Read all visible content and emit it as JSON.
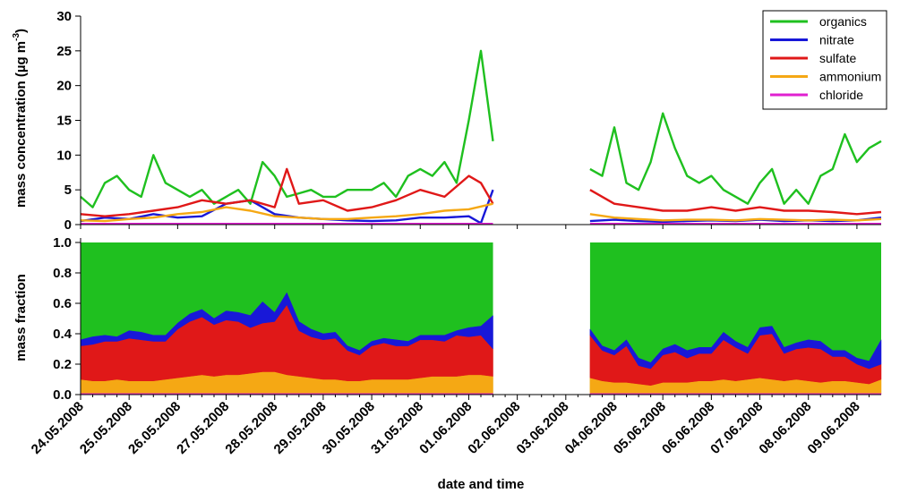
{
  "chart_data": [
    {
      "type": "line",
      "ylabel": "mass concentration (µg m",
      "ylabel_superscript": "-3",
      "ylabel_suffix": ")",
      "ylim": [
        0,
        30
      ],
      "yticks": [
        0,
        5,
        10,
        15,
        20,
        25,
        30
      ],
      "x_range": [
        "24.05.2008 00:00",
        "09.06.2008 12:00"
      ],
      "legend_position": "top-right",
      "series": [
        {
          "name": "organics",
          "color": "#1fc01f",
          "x": [
            "24.05.2008 00:00",
            "24.05.2008 06:00",
            "24.05.2008 12:00",
            "24.05.2008 18:00",
            "25.05.2008 00:00",
            "25.05.2008 06:00",
            "25.05.2008 12:00",
            "25.05.2008 18:00",
            "26.05.2008 00:00",
            "26.05.2008 06:00",
            "26.05.2008 12:00",
            "26.05.2008 18:00",
            "27.05.2008 00:00",
            "27.05.2008 06:00",
            "27.05.2008 12:00",
            "27.05.2008 18:00",
            "28.05.2008 00:00",
            "28.05.2008 06:00",
            "28.05.2008 12:00",
            "28.05.2008 18:00",
            "29.05.2008 00:00",
            "29.05.2008 06:00",
            "29.05.2008 12:00",
            "29.05.2008 18:00",
            "30.05.2008 00:00",
            "30.05.2008 06:00",
            "30.05.2008 12:00",
            "30.05.2008 18:00",
            "31.05.2008 00:00",
            "31.05.2008 06:00",
            "31.05.2008 12:00",
            "31.05.2008 18:00",
            "01.06.2008 00:00",
            "01.06.2008 06:00",
            "01.06.2008 12:00",
            null,
            "03.06.2008 12:00",
            "03.06.2008 18:00",
            "04.06.2008 00:00",
            "04.06.2008 06:00",
            "04.06.2008 12:00",
            "04.06.2008 18:00",
            "05.06.2008 00:00",
            "05.06.2008 06:00",
            "05.06.2008 12:00",
            "05.06.2008 18:00",
            "06.06.2008 00:00",
            "06.06.2008 06:00",
            "06.06.2008 12:00",
            "06.06.2008 18:00",
            "07.06.2008 00:00",
            "07.06.2008 06:00",
            "07.06.2008 12:00",
            "07.06.2008 18:00",
            "08.06.2008 00:00",
            "08.06.2008 06:00",
            "08.06.2008 12:00",
            "08.06.2008 18:00",
            "09.06.2008 00:00",
            "09.06.2008 06:00",
            "09.06.2008 12:00"
          ],
          "y": [
            4,
            2.5,
            6,
            7,
            5,
            4,
            10,
            6,
            5,
            4,
            5,
            3,
            4,
            5,
            3,
            9,
            7,
            4,
            4.5,
            5,
            4,
            4,
            5,
            5,
            5,
            6,
            4,
            7,
            8,
            7,
            9,
            6,
            15,
            25,
            12,
            null,
            8,
            7,
            14,
            6,
            5,
            9,
            16,
            11,
            7,
            6,
            7,
            5,
            4,
            3,
            6,
            8,
            3,
            5,
            3,
            7,
            8,
            13,
            9,
            11,
            12
          ]
        },
        {
          "name": "nitrate",
          "color": "#1818d8",
          "x": [
            "24.05.2008 00:00",
            "24.05.2008 12:00",
            "25.05.2008 00:00",
            "25.05.2008 12:00",
            "26.05.2008 00:00",
            "26.05.2008 12:00",
            "27.05.2008 00:00",
            "27.05.2008 12:00",
            "28.05.2008 00:00",
            "28.05.2008 12:00",
            "29.05.2008 00:00",
            "29.05.2008 12:00",
            "30.05.2008 00:00",
            "30.05.2008 12:00",
            "31.05.2008 00:00",
            "31.05.2008 12:00",
            "01.06.2008 00:00",
            "01.06.2008 06:00",
            "01.06.2008 12:00",
            null,
            "03.06.2008 12:00",
            "04.06.2008 00:00",
            "04.06.2008 12:00",
            "05.06.2008 00:00",
            "05.06.2008 12:00",
            "06.06.2008 00:00",
            "06.06.2008 12:00",
            "07.06.2008 00:00",
            "07.06.2008 12:00",
            "08.06.2008 00:00",
            "08.06.2008 12:00",
            "09.06.2008 00:00",
            "09.06.2008 12:00"
          ],
          "y": [
            0.5,
            1,
            0.8,
            1.5,
            1,
            1.2,
            3,
            3.5,
            1.5,
            1,
            0.8,
            0.6,
            0.5,
            0.6,
            1,
            1,
            1.2,
            0.2,
            5,
            null,
            0.5,
            0.7,
            0.5,
            0.4,
            0.5,
            0.6,
            0.5,
            0.7,
            0.5,
            0.6,
            0.5,
            0.6,
            1
          ]
        },
        {
          "name": "sulfate",
          "color": "#e01818",
          "x": [
            "24.05.2008 00:00",
            "24.05.2008 12:00",
            "25.05.2008 00:00",
            "25.05.2008 12:00",
            "26.05.2008 00:00",
            "26.05.2008 12:00",
            "27.05.2008 00:00",
            "27.05.2008 12:00",
            "28.05.2008 00:00",
            "28.05.2008 06:00",
            "28.05.2008 12:00",
            "29.05.2008 00:00",
            "29.05.2008 12:00",
            "30.05.2008 00:00",
            "30.05.2008 12:00",
            "31.05.2008 00:00",
            "31.05.2008 12:00",
            "01.06.2008 00:00",
            "01.06.2008 06:00",
            "01.06.2008 12:00",
            null,
            "03.06.2008 12:00",
            "04.06.2008 00:00",
            "04.06.2008 12:00",
            "05.06.2008 00:00",
            "05.06.2008 12:00",
            "06.06.2008 00:00",
            "06.06.2008 12:00",
            "07.06.2008 00:00",
            "07.06.2008 12:00",
            "08.06.2008 00:00",
            "08.06.2008 12:00",
            "09.06.2008 00:00",
            "09.06.2008 12:00"
          ],
          "y": [
            1.5,
            1.2,
            1.5,
            2,
            2.5,
            3.5,
            3,
            3.5,
            2.5,
            8,
            3,
            3.5,
            2,
            2.5,
            3.5,
            5,
            4,
            7,
            6,
            3,
            null,
            5,
            3,
            2.5,
            2,
            2,
            2.5,
            2,
            2.5,
            2,
            2,
            1.8,
            1.5,
            1.8
          ]
        },
        {
          "name": "ammonium",
          "color": "#f5a814",
          "x": [
            "24.05.2008 00:00",
            "24.05.2008 12:00",
            "25.05.2008 00:00",
            "25.05.2008 12:00",
            "26.05.2008 00:00",
            "26.05.2008 12:00",
            "27.05.2008 00:00",
            "27.05.2008 12:00",
            "28.05.2008 00:00",
            "28.05.2008 12:00",
            "29.05.2008 00:00",
            "29.05.2008 12:00",
            "30.05.2008 00:00",
            "30.05.2008 12:00",
            "31.05.2008 00:00",
            "31.05.2008 12:00",
            "01.06.2008 00:00",
            "01.06.2008 12:00",
            null,
            "03.06.2008 12:00",
            "04.06.2008 00:00",
            "04.06.2008 12:00",
            "05.06.2008 00:00",
            "05.06.2008 12:00",
            "06.06.2008 00:00",
            "06.06.2008 12:00",
            "07.06.2008 00:00",
            "07.06.2008 12:00",
            "08.06.2008 00:00",
            "08.06.2008 12:00",
            "09.06.2008 00:00",
            "09.06.2008 12:00"
          ],
          "y": [
            0.6,
            0.5,
            0.8,
            1,
            1.5,
            1.8,
            2.5,
            2,
            1.2,
            1,
            0.8,
            0.8,
            1,
            1.2,
            1.5,
            2,
            2.2,
            3,
            null,
            1.5,
            1,
            0.8,
            0.6,
            0.7,
            0.7,
            0.6,
            0.8,
            0.7,
            0.6,
            0.7,
            0.6,
            0.8
          ]
        },
        {
          "name": "chloride",
          "color": "#e020d0",
          "x": [
            "24.05.2008 00:00",
            "01.06.2008 12:00",
            null,
            "03.06.2008 12:00",
            "09.06.2008 12:00"
          ],
          "y": [
            0.1,
            0.1,
            null,
            0.1,
            0.1
          ]
        }
      ]
    },
    {
      "type": "area",
      "ylabel": "mass fraction",
      "ylim": [
        0,
        1
      ],
      "yticks": [
        "0.0",
        "0.2",
        "0.4",
        "0.6",
        "0.8",
        "1.0"
      ],
      "xlabel": "date and time",
      "stacked": true,
      "stack_order": [
        "chloride",
        "ammonium",
        "sulfate",
        "nitrate",
        "organics"
      ],
      "segments": [
        {
          "x": [
            "24.05.2008 00:00",
            "24.05.2008 06:00",
            "24.05.2008 12:00",
            "24.05.2008 18:00",
            "25.05.2008 00:00",
            "25.05.2008 06:00",
            "25.05.2008 12:00",
            "25.05.2008 18:00",
            "26.05.2008 00:00",
            "26.05.2008 06:00",
            "26.05.2008 12:00",
            "26.05.2008 18:00",
            "27.05.2008 00:00",
            "27.05.2008 06:00",
            "27.05.2008 12:00",
            "27.05.2008 18:00",
            "28.05.2008 00:00",
            "28.05.2008 06:00",
            "28.05.2008 12:00",
            "28.05.2008 18:00",
            "29.05.2008 00:00",
            "29.05.2008 06:00",
            "29.05.2008 12:00",
            "29.05.2008 18:00",
            "30.05.2008 00:00",
            "30.05.2008 06:00",
            "30.05.2008 12:00",
            "30.05.2008 18:00",
            "31.05.2008 00:00",
            "31.05.2008 06:00",
            "31.05.2008 12:00",
            "31.05.2008 18:00",
            "01.06.2008 00:00",
            "01.06.2008 06:00",
            "01.06.2008 12:00"
          ],
          "chloride": [
            0.01,
            0.01,
            0.01,
            0.01,
            0.01,
            0.01,
            0.01,
            0.01,
            0.01,
            0.01,
            0.01,
            0.01,
            0.01,
            0.01,
            0.01,
            0.01,
            0.01,
            0.01,
            0.01,
            0.01,
            0.01,
            0.01,
            0.01,
            0.01,
            0.01,
            0.01,
            0.01,
            0.01,
            0.01,
            0.01,
            0.01,
            0.01,
            0.01,
            0.01,
            0.01
          ],
          "ammonium": [
            0.09,
            0.08,
            0.08,
            0.09,
            0.08,
            0.08,
            0.08,
            0.09,
            0.1,
            0.11,
            0.12,
            0.11,
            0.12,
            0.12,
            0.13,
            0.14,
            0.14,
            0.12,
            0.11,
            0.1,
            0.09,
            0.09,
            0.08,
            0.08,
            0.09,
            0.09,
            0.09,
            0.09,
            0.1,
            0.11,
            0.11,
            0.11,
            0.12,
            0.12,
            0.11
          ],
          "sulfate": [
            0.22,
            0.24,
            0.26,
            0.25,
            0.28,
            0.27,
            0.26,
            0.25,
            0.32,
            0.36,
            0.38,
            0.34,
            0.36,
            0.35,
            0.3,
            0.32,
            0.33,
            0.46,
            0.3,
            0.27,
            0.26,
            0.27,
            0.2,
            0.17,
            0.22,
            0.24,
            0.22,
            0.22,
            0.25,
            0.24,
            0.23,
            0.27,
            0.25,
            0.26,
            0.18
          ],
          "nitrate": [
            0.04,
            0.05,
            0.04,
            0.03,
            0.05,
            0.05,
            0.04,
            0.04,
            0.04,
            0.05,
            0.05,
            0.04,
            0.06,
            0.06,
            0.08,
            0.14,
            0.06,
            0.08,
            0.06,
            0.05,
            0.04,
            0.04,
            0.03,
            0.03,
            0.03,
            0.03,
            0.04,
            0.03,
            0.03,
            0.03,
            0.04,
            0.03,
            0.06,
            0.06,
            0.22
          ]
        },
        {
          "x": [
            "03.06.2008 12:00",
            "03.06.2008 18:00",
            "04.06.2008 00:00",
            "04.06.2008 06:00",
            "04.06.2008 12:00",
            "04.06.2008 18:00",
            "05.06.2008 00:00",
            "05.06.2008 06:00",
            "05.06.2008 12:00",
            "05.06.2008 18:00",
            "06.06.2008 00:00",
            "06.06.2008 06:00",
            "06.06.2008 12:00",
            "06.06.2008 18:00",
            "07.06.2008 00:00",
            "07.06.2008 06:00",
            "07.06.2008 12:00",
            "07.06.2008 18:00",
            "08.06.2008 00:00",
            "08.06.2008 06:00",
            "08.06.2008 12:00",
            "08.06.2008 18:00",
            "09.06.2008 00:00",
            "09.06.2008 06:00",
            "09.06.2008 12:00"
          ],
          "chloride": [
            0.01,
            0.01,
            0.01,
            0.01,
            0.01,
            0.01,
            0.01,
            0.01,
            0.01,
            0.01,
            0.01,
            0.01,
            0.01,
            0.01,
            0.01,
            0.01,
            0.01,
            0.01,
            0.01,
            0.01,
            0.01,
            0.01,
            0.01,
            0.01,
            0.01
          ],
          "ammonium": [
            0.1,
            0.08,
            0.07,
            0.07,
            0.06,
            0.05,
            0.07,
            0.07,
            0.07,
            0.08,
            0.08,
            0.09,
            0.08,
            0.09,
            0.1,
            0.09,
            0.08,
            0.09,
            0.08,
            0.07,
            0.08,
            0.08,
            0.07,
            0.06,
            0.09
          ],
          "sulfate": [
            0.28,
            0.2,
            0.18,
            0.24,
            0.12,
            0.11,
            0.18,
            0.2,
            0.16,
            0.18,
            0.18,
            0.26,
            0.22,
            0.17,
            0.28,
            0.3,
            0.18,
            0.2,
            0.22,
            0.22,
            0.16,
            0.16,
            0.12,
            0.1,
            0.1
          ],
          "nitrate": [
            0.04,
            0.03,
            0.03,
            0.04,
            0.05,
            0.04,
            0.04,
            0.05,
            0.05,
            0.04,
            0.04,
            0.05,
            0.04,
            0.04,
            0.05,
            0.05,
            0.04,
            0.04,
            0.05,
            0.05,
            0.04,
            0.04,
            0.04,
            0.05,
            0.16
          ]
        }
      ]
    }
  ],
  "x_tick_labels": [
    "24.05.2008",
    "25.05.2008",
    "26.05.2008",
    "27.05.2008",
    "28.05.2008",
    "29.05.2008",
    "30.05.2008",
    "31.05.2008",
    "01.06.2008",
    "02.06.2008",
    "03.06.2008",
    "04.06.2008",
    "05.06.2008",
    "06.06.2008",
    "07.06.2008",
    "08.06.2008",
    "09.06.2008"
  ],
  "colors": {
    "organics": "#1fc01f",
    "nitrate": "#1818d8",
    "sulfate": "#e01818",
    "ammonium": "#f5a814",
    "chloride": "#e020d0"
  }
}
